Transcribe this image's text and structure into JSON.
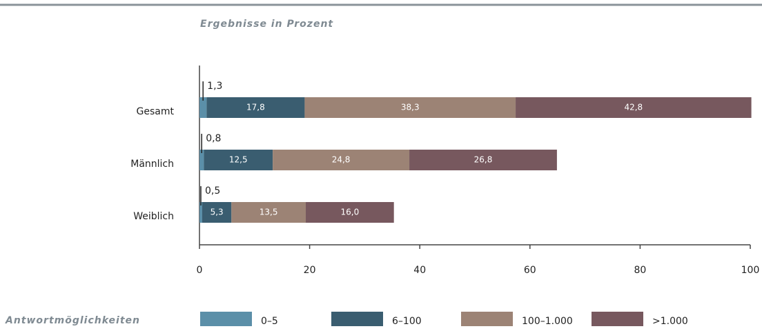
{
  "chart_data": {
    "type": "stacked_hbar",
    "subtitle": "Ergebnisse in Prozent",
    "legend_title": "Antwortmöglichkeiten",
    "categories": [
      "Gesamt",
      "Männlich",
      "Weiblich"
    ],
    "series": [
      {
        "name": "0–5",
        "color": "#5b8fa8",
        "values": [
          1.3,
          0.8,
          0.5
        ],
        "value_labels": [
          "1,3",
          "0,8",
          "0,5"
        ]
      },
      {
        "name": "6–100",
        "color": "#3a5d70",
        "values": [
          17.8,
          12.5,
          5.3
        ],
        "value_labels": [
          "17,8",
          "12,5",
          "5,3"
        ]
      },
      {
        "name": "100–1.000",
        "color": "#9c8375",
        "values": [
          38.3,
          24.8,
          13.5
        ],
        "value_labels": [
          "38,3",
          "24,8",
          "13,5"
        ]
      },
      {
        "name": ">1.000",
        "color": "#77585e",
        "values": [
          42.8,
          26.8,
          16.0
        ],
        "value_labels": [
          "42,8",
          "26,8",
          "16,0"
        ]
      }
    ],
    "xlim": [
      0,
      100
    ],
    "xticks": [
      0,
      20,
      40,
      60,
      80,
      100
    ]
  }
}
